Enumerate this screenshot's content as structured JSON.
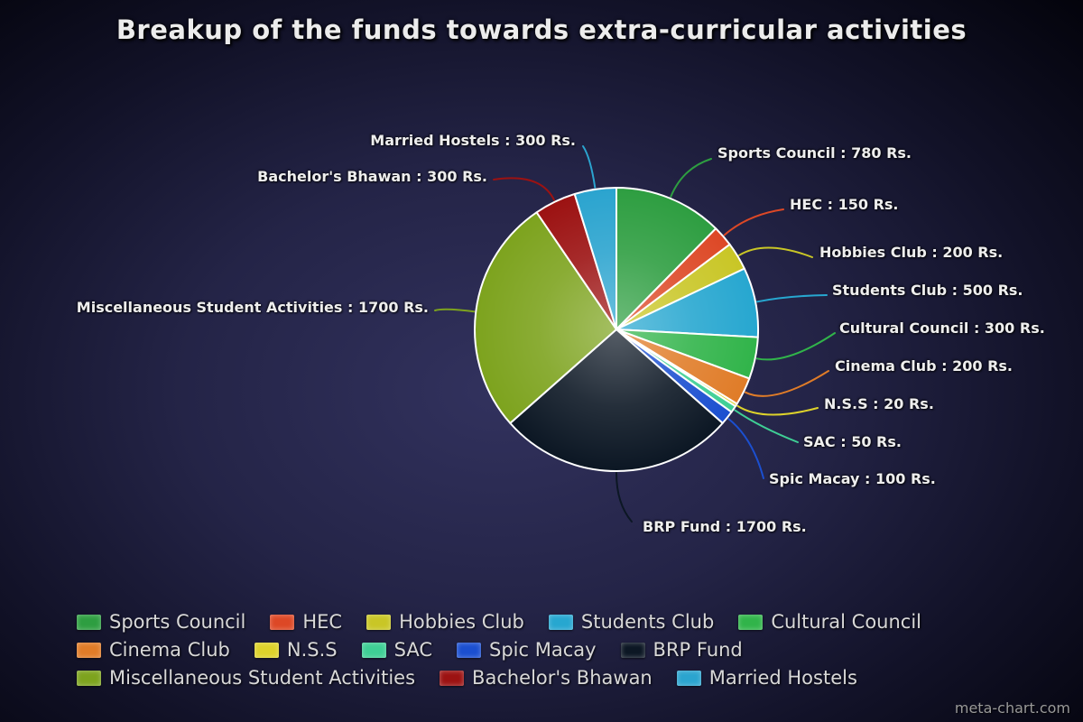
{
  "title": "Breakup of the funds towards extra-curricular activities",
  "watermark": "meta-chart.com",
  "chart_data": {
    "type": "pie",
    "title": "Breakup of the funds towards extra-curricular activities",
    "unit": "Rs.",
    "total": 6300,
    "start_angle_deg": -90,
    "direction": "clockwise",
    "legend_position": "bottom",
    "slices": [
      {
        "label": "Sports Council",
        "value": 780,
        "color": "#2e9e41",
        "callout": "Sports Council : 780 Rs."
      },
      {
        "label": "HEC",
        "value": 150,
        "color": "#dd4826",
        "callout": "HEC : 150 Rs."
      },
      {
        "label": "Hobbies Club",
        "value": 200,
        "color": "#c9c626",
        "callout": "Hobbies Club : 200 Rs."
      },
      {
        "label": "Students Club",
        "value": 500,
        "color": "#27a7d0",
        "callout": "Students Club : 500 Rs."
      },
      {
        "label": "Cultural Council",
        "value": 300,
        "color": "#31b44a",
        "callout": "Cultural Council : 300 Rs."
      },
      {
        "label": "Cinema Club",
        "value": 200,
        "color": "#e07c28",
        "callout": "Cinema Club : 200 Rs."
      },
      {
        "label": "N.S.S",
        "value": 20,
        "color": "#ddd22b",
        "callout": "N.S.S : 20 Rs."
      },
      {
        "label": "SAC",
        "value": 50,
        "color": "#3fcf95",
        "callout": "SAC : 50 Rs."
      },
      {
        "label": "Spic Macay",
        "value": 100,
        "color": "#1b4fd0",
        "callout": "Spic Macay : 100 Rs."
      },
      {
        "label": "BRP Fund",
        "value": 1700,
        "color": "#0c1724",
        "callout": "BRP Fund : 1700 Rs."
      },
      {
        "label": "Miscellaneous Student Activities",
        "value": 1700,
        "color": "#7da31e",
        "callout": "Miscellaneous Student Activities : 1700 Rs."
      },
      {
        "label": "Bachelor's Bhawan",
        "value": 300,
        "color": "#9c1212",
        "callout": "Bachelor's Bhawan : 300 Rs."
      },
      {
        "label": "Married Hostels",
        "value": 300,
        "color": "#2ba4cf",
        "callout": "Married Hostels : 300 Rs."
      }
    ]
  }
}
